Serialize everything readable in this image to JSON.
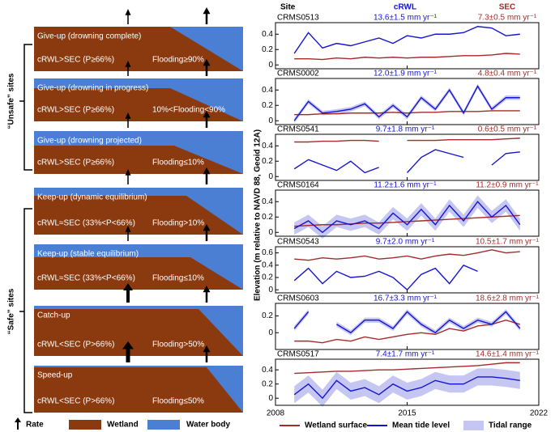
{
  "diagram": {
    "groups": [
      "“Unsafe” sites",
      "“Safe” sites"
    ],
    "boxes": [
      {
        "title": "Give-up (drowning complete)",
        "condition": "cRWL>SEC (P≥66%)",
        "flooding": "Flooding≥90%"
      },
      {
        "title": "Give-up (drowning in progress)",
        "condition": "cRWL>SEC (P≥66%)",
        "flooding": "10%<Flooding<90%"
      },
      {
        "title": "Give-up (drowning projected)",
        "condition": "cRWL>SEC (P≥66%)",
        "flooding": "Flooding≤10%"
      },
      {
        "title": "Keep-up (dynamic equilibrium)",
        "condition": "cRWL≈SEC (33%<P<66%)",
        "flooding": "Flooding>10%"
      },
      {
        "title": "Keep-up (stable equilibrium)",
        "condition": "cRWL≈SEC (33%<P<66%)",
        "flooding": "Flooding≤10%"
      },
      {
        "title": "Catch-up",
        "condition": "cRWL<SEC (P>66%)",
        "flooding": "Flooding>50%"
      },
      {
        "title": "Speed-up",
        "condition": "cRWL<SEC (P>66%)",
        "flooding": "Flooding≤50%"
      }
    ],
    "legend": [
      {
        "name": "Rate",
        "color": "#000000"
      },
      {
        "name": "Wetland",
        "color": "#8b3a0f"
      },
      {
        "name": "Water body",
        "color": "#4a7fd4"
      }
    ]
  },
  "headers": {
    "site": "Site",
    "crwl": "cRWL",
    "sec": "SEC"
  },
  "ylabel": "Elevation (m relative to NAVD 88, Geoid 12A)",
  "x_axis": {
    "xlim": [
      2008,
      2022
    ],
    "xticks": [
      2008,
      2015,
      2022
    ]
  },
  "legend": [
    {
      "name": "Wetland surface",
      "color": "#a52a2a"
    },
    {
      "name": "Mean tide level",
      "color": "#1414d2"
    },
    {
      "name": "Tidal range",
      "color": "#c6c6f2"
    }
  ],
  "chart_data": [
    {
      "type": "line",
      "site": "CRMS0513",
      "crwl": "13.6±1.5 mm yr⁻¹",
      "sec": "7.3±0.5 mm yr⁻¹",
      "ylim": [
        -0.05,
        0.55
      ],
      "yticks": [
        0,
        0.2,
        0.4
      ],
      "x": [
        2009,
        2009.75,
        2010.5,
        2011.25,
        2012,
        2012.75,
        2013.5,
        2014.25,
        2015,
        2015.75,
        2016.5,
        2017.25,
        2018,
        2018.75,
        2019.5,
        2020.25,
        2021
      ],
      "mean_tide_level": [
        0.15,
        0.42,
        0.22,
        0.28,
        0.25,
        0.3,
        0.35,
        0.28,
        0.38,
        0.35,
        0.4,
        0.4,
        0.42,
        0.5,
        0.48,
        0.38,
        0.4
      ],
      "wetland_surface": [
        0.08,
        0.08,
        0.07,
        0.09,
        0.08,
        0.1,
        0.09,
        0.1,
        0.09,
        0.1,
        0.1,
        0.11,
        0.12,
        0.12,
        0.13,
        0.15,
        0.14
      ]
    },
    {
      "type": "line",
      "site": "CRMS0002",
      "crwl": "12.0±1.9 mm yr⁻¹",
      "sec": "4.8±0.4 mm yr⁻¹",
      "ylim": [
        -0.05,
        0.55
      ],
      "yticks": [
        0,
        0.2,
        0.4
      ],
      "x": [
        2009,
        2009.75,
        2010.5,
        2011.25,
        2012,
        2012.75,
        2013.5,
        2014.25,
        2015,
        2015.75,
        2016.5,
        2017.25,
        2018,
        2018.75,
        2019.5,
        2020.25,
        2021
      ],
      "mean_tide_level": [
        0.0,
        0.25,
        0.1,
        0.12,
        0.15,
        0.22,
        0.05,
        0.2,
        0.05,
        0.3,
        0.15,
        0.4,
        0.1,
        0.45,
        0.15,
        0.3,
        0.3
      ],
      "wetland_surface": [
        0.08,
        0.08,
        0.09,
        0.09,
        0.1,
        0.1,
        0.1,
        0.11,
        0.1,
        0.11,
        0.11,
        0.12,
        0.12,
        0.12,
        0.13,
        0.13,
        0.13
      ],
      "tidal_range": [
        0.03,
        0.03,
        0.03,
        0.03,
        0.03,
        0.03,
        0.03,
        0.03,
        0.03,
        0.03,
        0.03,
        0.03,
        0.03,
        0.03,
        0.03,
        0.03,
        0.03
      ]
    },
    {
      "type": "line",
      "site": "CRMS0541",
      "crwl": "9.7±1.8 mm yr⁻¹",
      "sec": "0.6±0.5 mm yr⁻¹",
      "ylim": [
        -0.05,
        0.55
      ],
      "yticks": [
        0,
        0.2,
        0.4
      ],
      "x": [
        2009,
        2009.75,
        2010.5,
        2011.25,
        2012,
        2012.75,
        2013.5,
        2014.25,
        2015,
        2015.75,
        2016.5,
        2017.25,
        2018,
        2018.75,
        2019.5,
        2020.25,
        2021
      ],
      "mean_tide_level": [
        0.1,
        0.22,
        0.15,
        0.08,
        0.2,
        0.05,
        0.12,
        null,
        0.05,
        0.25,
        0.35,
        0.3,
        0.25,
        null,
        0.15,
        0.3,
        0.32
      ],
      "wetland_surface": [
        0.45,
        0.45,
        0.46,
        0.46,
        0.47,
        0.47,
        0.46,
        null,
        0.47,
        0.47,
        0.47,
        0.48,
        0.48,
        0.48,
        0.48,
        0.49,
        0.5
      ]
    },
    {
      "type": "line",
      "site": "CRMS0164",
      "crwl": "11.2±1.6 mm yr⁻¹",
      "sec": "11.2±0.9 mm yr⁻¹",
      "ylim": [
        -0.05,
        0.55
      ],
      "yticks": [
        0,
        0.2,
        0.4
      ],
      "x": [
        2009,
        2009.75,
        2010.5,
        2011.25,
        2012,
        2012.75,
        2013.5,
        2014.25,
        2015,
        2015.75,
        2016.5,
        2017.25,
        2018,
        2018.75,
        2019.5,
        2020.25,
        2021
      ],
      "mean_tide_level": [
        0.05,
        0.15,
        0.0,
        0.15,
        0.1,
        0.15,
        0.05,
        0.25,
        0.1,
        0.3,
        0.1,
        0.35,
        0.15,
        0.4,
        0.2,
        0.35,
        0.1
      ],
      "wetland_surface": [
        0.08,
        0.09,
        0.1,
        0.1,
        0.11,
        0.12,
        0.12,
        0.13,
        0.14,
        0.15,
        0.16,
        0.17,
        0.18,
        0.19,
        0.2,
        0.21,
        0.22
      ],
      "tidal_range": [
        0.08,
        0.08,
        0.08,
        0.08,
        0.08,
        0.08,
        0.08,
        0.08,
        0.08,
        0.08,
        0.08,
        0.08,
        0.08,
        0.08,
        0.08,
        0.08,
        0.08
      ]
    },
    {
      "type": "line",
      "site": "CRMS0543",
      "crwl": "9.7±2.0 mm yr⁻¹",
      "sec": "10.5±1.7 mm yr⁻¹",
      "ylim": [
        -0.05,
        0.7
      ],
      "yticks": [
        0,
        0.2,
        0.4,
        0.6
      ],
      "x": [
        2009,
        2009.75,
        2010.5,
        2011.25,
        2012,
        2012.75,
        2013.5,
        2014.25,
        2015,
        2015.75,
        2016.5,
        2017.25,
        2018,
        2018.75,
        2019.5,
        2020.25,
        2021
      ],
      "mean_tide_level": [
        0.15,
        0.35,
        0.1,
        0.3,
        0.2,
        0.22,
        0.3,
        0.2,
        0.0,
        0.25,
        0.35,
        0.1,
        0.4,
        0.3,
        null,
        null,
        null
      ],
      "wetland_surface": [
        0.5,
        0.48,
        0.52,
        0.5,
        0.52,
        0.55,
        0.5,
        0.52,
        0.55,
        0.5,
        0.55,
        0.58,
        0.56,
        0.6,
        0.65,
        0.6,
        0.62
      ]
    },
    {
      "type": "line",
      "site": "CRMS0603",
      "crwl": "16.7±3.3 mm yr⁻¹",
      "sec": "18.6±2.8 mm yr⁻¹",
      "ylim": [
        -0.2,
        0.35
      ],
      "yticks": [
        0,
        0.2
      ],
      "x": [
        2009,
        2009.75,
        2010.5,
        2011.25,
        2012,
        2012.75,
        2013.5,
        2014.25,
        2015,
        2015.75,
        2016.5,
        2017.25,
        2018,
        2018.75,
        2019.5,
        2020.25,
        2021
      ],
      "mean_tide_level": [
        0.05,
        0.25,
        null,
        0.1,
        0.0,
        0.15,
        0.15,
        0.05,
        0.25,
        0.1,
        0.0,
        0.15,
        0.05,
        0.15,
        0.1,
        0.25,
        0.05
      ],
      "wetland_surface": [
        -0.1,
        -0.1,
        -0.12,
        -0.08,
        -0.1,
        -0.05,
        -0.08,
        -0.05,
        -0.02,
        0.0,
        -0.02,
        0.05,
        0.02,
        0.08,
        0.1,
        0.15,
        0.1
      ],
      "tidal_range": [
        0.03,
        0.03,
        null,
        0.03,
        0.03,
        0.03,
        0.03,
        0.03,
        0.03,
        0.03,
        0.03,
        0.03,
        0.03,
        0.03,
        0.03,
        0.03,
        0.03
      ]
    },
    {
      "type": "line",
      "site": "CRMS0517",
      "crwl": "7.4±1.7 mm yr⁻¹",
      "sec": "14.6±1.4 mm yr⁻¹",
      "ylim": [
        -0.1,
        0.55
      ],
      "yticks": [
        0,
        0.2,
        0.4
      ],
      "x": [
        2009,
        2009.75,
        2010.5,
        2011.25,
        2012,
        2012.75,
        2013.5,
        2014.25,
        2015,
        2015.75,
        2016.5,
        2017.25,
        2018,
        2018.75,
        2019.5,
        2020.25,
        2021
      ],
      "mean_tide_level": [
        0.05,
        0.2,
        0.0,
        0.25,
        0.1,
        0.15,
        0.05,
        0.2,
        0.1,
        0.15,
        0.25,
        0.2,
        0.2,
        0.3,
        0.3,
        0.28,
        0.25
      ],
      "wetland_surface": [
        0.35,
        0.36,
        0.37,
        0.38,
        0.38,
        0.39,
        0.4,
        0.4,
        0.41,
        0.42,
        0.43,
        0.44,
        0.45,
        0.46,
        0.48,
        0.5,
        0.5
      ],
      "tidal_range": [
        0.12,
        0.12,
        0.12,
        0.12,
        0.12,
        0.12,
        0.12,
        0.12,
        0.12,
        0.12,
        0.12,
        0.12,
        0.12,
        0.12,
        0.12,
        0.12,
        0.12
      ]
    }
  ]
}
